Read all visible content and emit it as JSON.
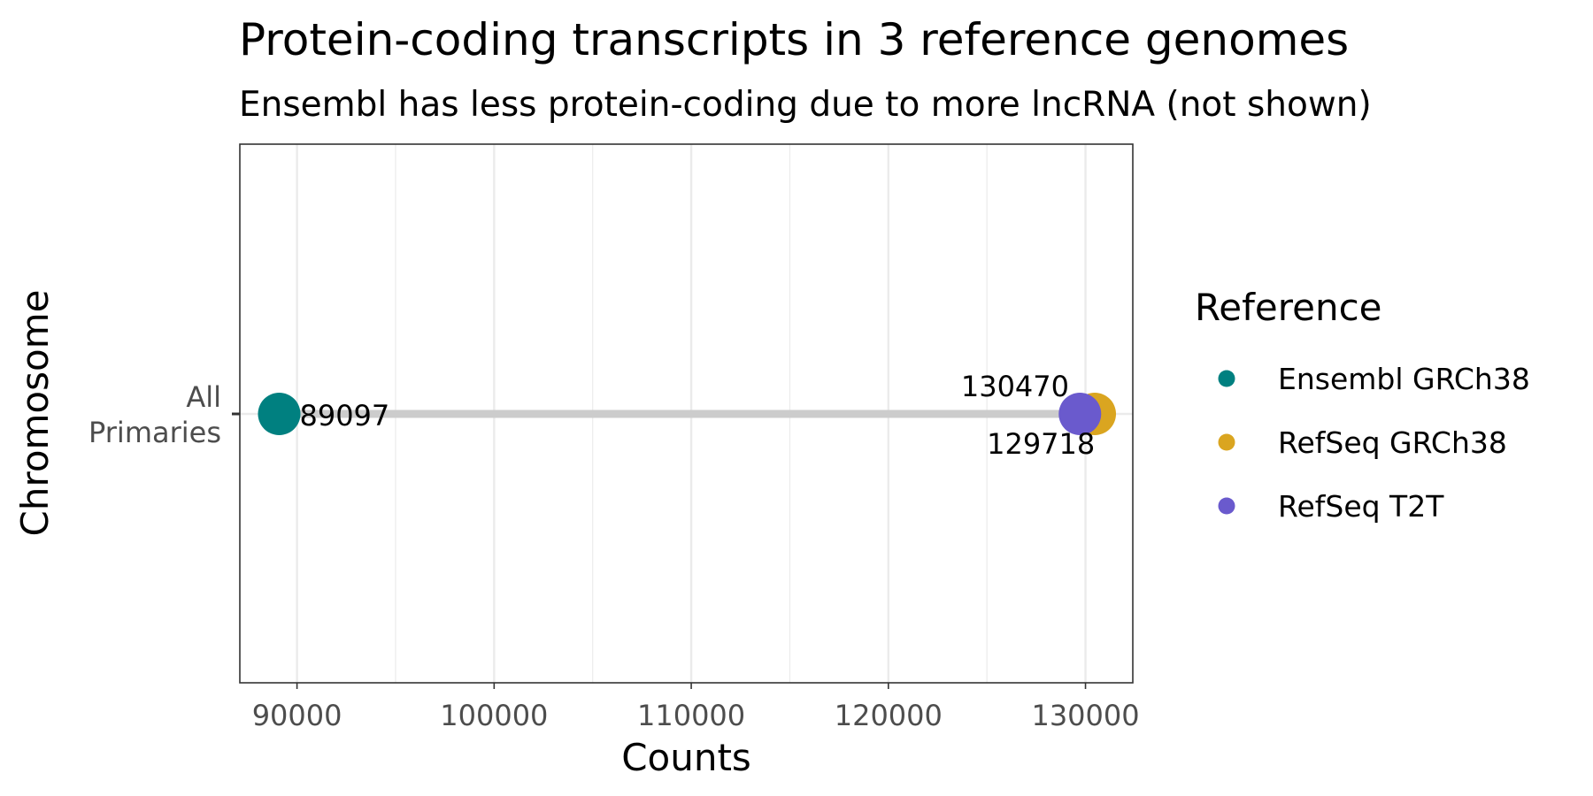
{
  "chart_data": {
    "type": "scatter",
    "title": "Protein-coding transcripts in 3 reference genomes",
    "subtitle": "Ensembl has less protein-coding due to more lncRNA (not shown)",
    "xlabel": "Counts",
    "ylabel": "Chromosome",
    "xlim": [
      87100,
      132400
    ],
    "x_ticks": [
      90000,
      100000,
      110000,
      120000,
      130000
    ],
    "x_tick_labels": [
      "90000",
      "100000",
      "110000",
      "120000",
      "130000"
    ],
    "categories": [
      "All\nPrimaries"
    ],
    "series": [
      {
        "name": "Ensembl GRCh38",
        "color": "#008080",
        "values": [
          89097
        ],
        "label": "89097"
      },
      {
        "name": "RefSeq GRCh38",
        "color": "#DAA520",
        "values": [
          130470
        ],
        "label": "130470"
      },
      {
        "name": "RefSeq T2T",
        "color": "#6A5ACD",
        "values": [
          129718
        ],
        "label": "129718"
      }
    ],
    "segment": {
      "from": 89097,
      "to": 130470,
      "color": "#cccccc"
    },
    "legend": {
      "title": "Reference",
      "position": "right"
    },
    "grid": true
  }
}
